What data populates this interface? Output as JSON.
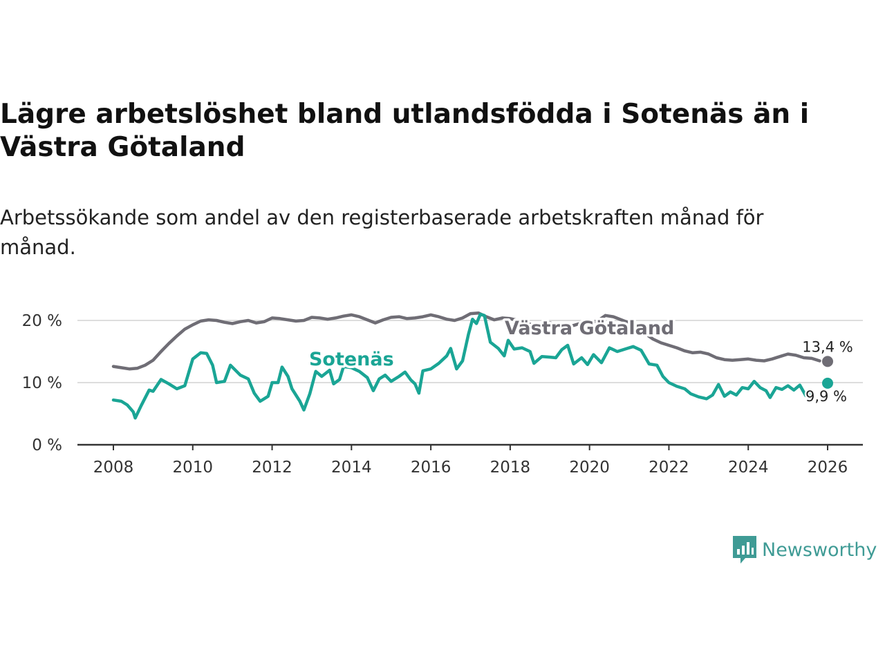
{
  "title": "Lägre arbetslöshet bland utlandsfödda i Sotenäs än i Västra Götaland",
  "subtitle": "Arbetssökande som andel av den registerbaserade arbetskraften månad för månad.",
  "logo": {
    "text": "Newsworthy",
    "icon": "newsworthy-chart-icon",
    "color": "#3f9b95"
  },
  "chart_data": {
    "type": "line",
    "title": "Lägre arbetslöshet bland utlandsfödda i Sotenäs än i Västra Götaland",
    "xlabel": "",
    "ylabel": "",
    "xlim": [
      2007.5,
      2027
    ],
    "ylim": [
      0,
      22
    ],
    "x_ticks": [
      2008,
      2010,
      2012,
      2014,
      2016,
      2018,
      2020,
      2022,
      2024,
      2026
    ],
    "x_tick_labels": [
      "2008",
      "2010",
      "2012",
      "2014",
      "2016",
      "2018",
      "2020",
      "2022",
      "2024",
      "2026"
    ],
    "y_ticks": [
      0,
      10,
      20
    ],
    "y_tick_labels": [
      "0 %",
      "10 %",
      "20 %"
    ],
    "grid": true,
    "series": [
      {
        "name": "Västra Götaland",
        "color": "#6f6d75",
        "end_label": "13,4 %",
        "end_value": 13.4,
        "end_x": 2026.0,
        "points": [
          [
            2008.0,
            12.6
          ],
          [
            2008.2,
            12.4
          ],
          [
            2008.4,
            12.2
          ],
          [
            2008.6,
            12.3
          ],
          [
            2008.8,
            12.8
          ],
          [
            2009.0,
            13.6
          ],
          [
            2009.2,
            15.0
          ],
          [
            2009.4,
            16.3
          ],
          [
            2009.6,
            17.5
          ],
          [
            2009.8,
            18.6
          ],
          [
            2010.0,
            19.3
          ],
          [
            2010.2,
            19.9
          ],
          [
            2010.4,
            20.1
          ],
          [
            2010.6,
            20.0
          ],
          [
            2010.8,
            19.7
          ],
          [
            2011.0,
            19.5
          ],
          [
            2011.2,
            19.8
          ],
          [
            2011.4,
            20.0
          ],
          [
            2011.6,
            19.6
          ],
          [
            2011.8,
            19.8
          ],
          [
            2012.0,
            20.4
          ],
          [
            2012.2,
            20.3
          ],
          [
            2012.4,
            20.1
          ],
          [
            2012.6,
            19.9
          ],
          [
            2012.8,
            20.0
          ],
          [
            2013.0,
            20.5
          ],
          [
            2013.2,
            20.4
          ],
          [
            2013.4,
            20.2
          ],
          [
            2013.6,
            20.4
          ],
          [
            2013.8,
            20.7
          ],
          [
            2014.0,
            20.9
          ],
          [
            2014.2,
            20.6
          ],
          [
            2014.4,
            20.1
          ],
          [
            2014.6,
            19.6
          ],
          [
            2014.8,
            20.1
          ],
          [
            2015.0,
            20.5
          ],
          [
            2015.2,
            20.6
          ],
          [
            2015.4,
            20.3
          ],
          [
            2015.6,
            20.4
          ],
          [
            2015.8,
            20.6
          ],
          [
            2016.0,
            20.9
          ],
          [
            2016.2,
            20.6
          ],
          [
            2016.4,
            20.2
          ],
          [
            2016.6,
            20.0
          ],
          [
            2016.8,
            20.4
          ],
          [
            2017.0,
            21.1
          ],
          [
            2017.2,
            21.2
          ],
          [
            2017.4,
            20.6
          ],
          [
            2017.6,
            20.1
          ],
          [
            2017.8,
            20.4
          ],
          [
            2018.0,
            20.3
          ],
          [
            2018.2,
            20.0
          ],
          [
            2018.4,
            19.6
          ],
          [
            2018.6,
            19.2
          ],
          [
            2018.8,
            19.4
          ],
          [
            2019.0,
            19.6
          ],
          [
            2019.2,
            19.3
          ],
          [
            2019.4,
            19.0
          ],
          [
            2019.6,
            19.2
          ],
          [
            2019.8,
            19.6
          ],
          [
            2020.0,
            19.7
          ],
          [
            2020.2,
            19.9
          ],
          [
            2020.4,
            20.8
          ],
          [
            2020.6,
            20.6
          ],
          [
            2020.8,
            20.1
          ],
          [
            2021.0,
            19.6
          ],
          [
            2021.2,
            18.8
          ],
          [
            2021.4,
            17.9
          ],
          [
            2021.6,
            17.0
          ],
          [
            2021.8,
            16.4
          ],
          [
            2022.0,
            16.0
          ],
          [
            2022.2,
            15.6
          ],
          [
            2022.4,
            15.1
          ],
          [
            2022.6,
            14.8
          ],
          [
            2022.8,
            14.9
          ],
          [
            2023.0,
            14.6
          ],
          [
            2023.2,
            14.0
          ],
          [
            2023.4,
            13.7
          ],
          [
            2023.6,
            13.6
          ],
          [
            2023.8,
            13.7
          ],
          [
            2024.0,
            13.8
          ],
          [
            2024.2,
            13.6
          ],
          [
            2024.4,
            13.5
          ],
          [
            2024.6,
            13.8
          ],
          [
            2024.8,
            14.2
          ],
          [
            2025.0,
            14.6
          ],
          [
            2025.2,
            14.4
          ],
          [
            2025.4,
            14.0
          ],
          [
            2025.6,
            13.9
          ],
          [
            2025.8,
            13.5
          ]
        ]
      },
      {
        "name": "Sotenäs",
        "color": "#1aa595",
        "end_label": "9,9 %",
        "end_value": 9.9,
        "end_x": 2026.0,
        "points": [
          [
            2008.0,
            7.2
          ],
          [
            2008.2,
            7.0
          ],
          [
            2008.35,
            6.4
          ],
          [
            2008.5,
            5.3
          ],
          [
            2008.55,
            4.3
          ],
          [
            2008.7,
            6.3
          ],
          [
            2008.9,
            8.8
          ],
          [
            2009.0,
            8.6
          ],
          [
            2009.2,
            10.5
          ],
          [
            2009.4,
            9.8
          ],
          [
            2009.6,
            9.0
          ],
          [
            2009.8,
            9.5
          ],
          [
            2010.0,
            13.8
          ],
          [
            2010.2,
            14.8
          ],
          [
            2010.35,
            14.7
          ],
          [
            2010.5,
            12.8
          ],
          [
            2010.6,
            10.0
          ],
          [
            2010.8,
            10.2
          ],
          [
            2010.95,
            12.8
          ],
          [
            2011.2,
            11.2
          ],
          [
            2011.4,
            10.6
          ],
          [
            2011.55,
            8.3
          ],
          [
            2011.7,
            7.0
          ],
          [
            2011.9,
            7.8
          ],
          [
            2012.0,
            10.0
          ],
          [
            2012.15,
            10.0
          ],
          [
            2012.25,
            12.5
          ],
          [
            2012.4,
            11.0
          ],
          [
            2012.5,
            9.0
          ],
          [
            2012.7,
            7.0
          ],
          [
            2012.8,
            5.6
          ],
          [
            2012.95,
            8.2
          ],
          [
            2013.1,
            11.8
          ],
          [
            2013.25,
            11.0
          ],
          [
            2013.45,
            12.0
          ],
          [
            2013.55,
            9.8
          ],
          [
            2013.7,
            10.5
          ],
          [
            2013.8,
            12.6
          ],
          [
            2014.0,
            12.4
          ],
          [
            2014.2,
            11.8
          ],
          [
            2014.4,
            10.8
          ],
          [
            2014.55,
            8.7
          ],
          [
            2014.7,
            10.6
          ],
          [
            2014.85,
            11.2
          ],
          [
            2015.0,
            10.2
          ],
          [
            2015.2,
            11.0
          ],
          [
            2015.35,
            11.7
          ],
          [
            2015.5,
            10.4
          ],
          [
            2015.6,
            9.8
          ],
          [
            2015.7,
            8.3
          ],
          [
            2015.8,
            11.9
          ],
          [
            2016.0,
            12.2
          ],
          [
            2016.2,
            13.1
          ],
          [
            2016.4,
            14.3
          ],
          [
            2016.5,
            15.5
          ],
          [
            2016.65,
            12.2
          ],
          [
            2016.8,
            13.5
          ],
          [
            2016.95,
            17.8
          ],
          [
            2017.05,
            20.2
          ],
          [
            2017.15,
            19.5
          ],
          [
            2017.25,
            21.0
          ],
          [
            2017.35,
            20.8
          ],
          [
            2017.5,
            16.5
          ],
          [
            2017.7,
            15.5
          ],
          [
            2017.85,
            14.3
          ],
          [
            2017.95,
            16.8
          ],
          [
            2018.1,
            15.4
          ],
          [
            2018.3,
            15.6
          ],
          [
            2018.5,
            15.0
          ],
          [
            2018.6,
            13.1
          ],
          [
            2018.8,
            14.2
          ],
          [
            2019.0,
            14.1
          ],
          [
            2019.15,
            14.0
          ],
          [
            2019.3,
            15.3
          ],
          [
            2019.45,
            16.0
          ],
          [
            2019.6,
            13.0
          ],
          [
            2019.8,
            14.0
          ],
          [
            2019.95,
            12.9
          ],
          [
            2020.1,
            14.5
          ],
          [
            2020.3,
            13.2
          ],
          [
            2020.5,
            15.6
          ],
          [
            2020.7,
            15.0
          ],
          [
            2020.9,
            15.4
          ],
          [
            2021.1,
            15.8
          ],
          [
            2021.3,
            15.2
          ],
          [
            2021.5,
            13.0
          ],
          [
            2021.7,
            12.8
          ],
          [
            2021.85,
            11.0
          ],
          [
            2022.0,
            10.0
          ],
          [
            2022.2,
            9.4
          ],
          [
            2022.4,
            9.0
          ],
          [
            2022.55,
            8.2
          ],
          [
            2022.75,
            7.7
          ],
          [
            2022.95,
            7.4
          ],
          [
            2023.1,
            8.0
          ],
          [
            2023.25,
            9.7
          ],
          [
            2023.4,
            7.8
          ],
          [
            2023.55,
            8.5
          ],
          [
            2023.7,
            8.0
          ],
          [
            2023.85,
            9.2
          ],
          [
            2024.0,
            9.0
          ],
          [
            2024.15,
            10.2
          ],
          [
            2024.3,
            9.2
          ],
          [
            2024.45,
            8.7
          ],
          [
            2024.55,
            7.6
          ],
          [
            2024.7,
            9.2
          ],
          [
            2024.85,
            8.9
          ],
          [
            2025.0,
            9.5
          ],
          [
            2025.15,
            8.8
          ],
          [
            2025.3,
            9.6
          ],
          [
            2025.45,
            7.9
          ],
          [
            2025.55,
            8.3
          ]
        ]
      }
    ],
    "annotations": [
      {
        "text": "Västra Götaland",
        "series": "Västra Götaland",
        "x": 2020.0,
        "y": 17.8
      },
      {
        "text": "Sotenäs",
        "series": "Sotenäs",
        "x": 2014.0,
        "y": 12.8
      }
    ]
  }
}
